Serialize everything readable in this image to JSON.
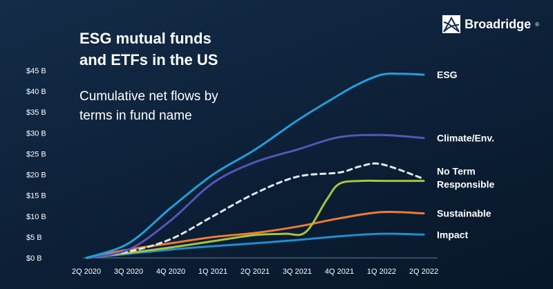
{
  "header": {
    "title_line1": "ESG mutual funds",
    "title_line2": "and ETFs in the US",
    "subtitle_line1": "Cumulative net flows by",
    "subtitle_line2": "terms in fund name"
  },
  "brand": {
    "name": "Broadridge",
    "mark": "®"
  },
  "chart_data": {
    "type": "line",
    "title": "ESG mutual funds and ETFs in the US",
    "subtitle": "Cumulative net flows by terms in fund name",
    "x": [
      0,
      1,
      2,
      3,
      4,
      5,
      6,
      7,
      8
    ],
    "x_tick_labels": [
      "2Q 2020",
      "3Q 2020",
      "4Q 2020",
      "1Q 2021",
      "2Q 2021",
      "3Q 2021",
      "4Q 2021",
      "1Q 2022",
      "2Q 2022"
    ],
    "y_tick_values": [
      0,
      5,
      10,
      15,
      20,
      25,
      30,
      35,
      40,
      45
    ],
    "y_tick_labels": [
      "$0 B",
      "$5 B",
      "$10 B",
      "$15 B",
      "$20 B",
      "$25 B",
      "$30 B",
      "$35 B",
      "$40 B",
      "$45 B"
    ],
    "ylim": [
      0,
      45
    ],
    "xlabel": "",
    "ylabel": "",
    "grid": false,
    "legend": "right",
    "series": [
      {
        "name": "ESG",
        "color": "#1fa0dc",
        "dashed": false,
        "x": [
          0,
          1,
          2,
          3,
          4,
          5,
          5.8,
          6.4,
          7,
          7.5,
          8
        ],
        "values": [
          0,
          3.5,
          12,
          20,
          26,
          33,
          38,
          41.5,
          44,
          44.2,
          44
        ]
      },
      {
        "name": "Climate/Env.",
        "color": "#5456b8",
        "dashed": false,
        "x": [
          0,
          1,
          2,
          3,
          4,
          5,
          6,
          7,
          8
        ],
        "values": [
          0,
          2,
          9,
          18,
          23,
          26,
          29,
          29.5,
          28.8
        ]
      },
      {
        "name": "No Term",
        "color": "#e2e8ef",
        "dashed": true,
        "x": [
          0,
          1,
          2,
          3,
          4,
          5,
          6,
          6.5,
          7,
          8
        ],
        "values": [
          0,
          1.5,
          4.5,
          10,
          15.5,
          19.5,
          20.5,
          22,
          22.5,
          19
        ]
      },
      {
        "name": "Responsible",
        "color": "#a7c53a",
        "dashed": false,
        "x": [
          0,
          1,
          2,
          3,
          4,
          4.7,
          5.2,
          5.7,
          6,
          6.5,
          7,
          8
        ],
        "values": [
          0,
          1.2,
          2.5,
          4,
          5.5,
          5.8,
          6.2,
          14,
          17.8,
          18.5,
          18.5,
          18.5
        ]
      },
      {
        "name": "Sustainable",
        "color": "#ee7b36",
        "dashed": false,
        "x": [
          0,
          1,
          2,
          3,
          4,
          5,
          6,
          7,
          8
        ],
        "values": [
          0,
          2,
          3.5,
          5,
          6,
          7.5,
          9.5,
          11,
          10.7
        ]
      },
      {
        "name": "Impact",
        "color": "#1f8fcf",
        "dashed": false,
        "x": [
          0,
          1,
          2,
          3,
          4,
          5,
          6,
          7,
          8
        ],
        "values": [
          0,
          1,
          2,
          2.8,
          3.5,
          4.3,
          5.2,
          5.8,
          5.6
        ]
      }
    ],
    "end_labels": [
      {
        "lines": [
          "ESG"
        ],
        "y_value": 44
      },
      {
        "lines": [
          "Climate/Env."
        ],
        "y_value": 28.8
      },
      {
        "lines": [
          "No Term",
          "Responsible"
        ],
        "y_value": 19
      },
      {
        "lines": [
          "Sustainable"
        ],
        "y_value": 10.7
      },
      {
        "lines": [
          "Impact"
        ],
        "y_value": 5.6
      }
    ]
  }
}
